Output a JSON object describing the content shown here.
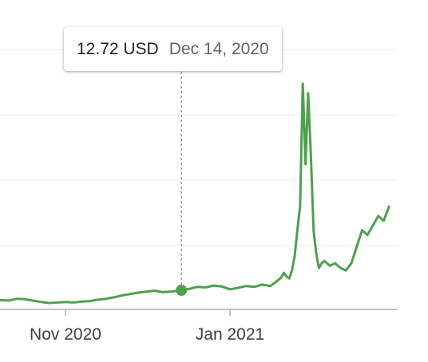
{
  "chart_data": {
    "type": "line",
    "title": "",
    "xlabel": "",
    "ylabel": "",
    "x_tick_labels": [
      "Nov 2020",
      "Jan 2021"
    ],
    "grid": true,
    "legend": "none",
    "series": [
      {
        "color": "#4f9f4f",
        "points": [
          [
            "2020-10-02",
            0.3
          ],
          [
            "2020-10-05",
            0.27
          ],
          [
            "2020-10-08",
            0.32
          ],
          [
            "2020-10-11",
            0.31
          ],
          [
            "2020-10-14",
            0.35
          ],
          [
            "2020-10-17",
            0.34
          ],
          [
            "2020-10-20",
            0.31
          ],
          [
            "2020-10-23",
            0.28
          ],
          [
            "2020-10-26",
            0.26
          ],
          [
            "2020-10-29",
            0.27
          ],
          [
            "2020-11-01",
            0.28
          ],
          [
            "2020-11-04",
            0.27
          ],
          [
            "2020-11-07",
            0.29
          ],
          [
            "2020-11-10",
            0.3
          ],
          [
            "2020-11-13",
            0.33
          ],
          [
            "2020-11-16",
            0.35
          ],
          [
            "2020-11-19",
            0.38
          ],
          [
            "2020-11-22",
            0.42
          ],
          [
            "2020-11-25",
            0.45
          ],
          [
            "2020-11-28",
            0.48
          ],
          [
            "2020-12-01",
            0.5
          ],
          [
            "2020-12-04",
            0.52
          ],
          [
            "2020-12-07",
            0.49
          ],
          [
            "2020-12-10",
            0.5
          ],
          [
            "2020-12-14",
            12.72
          ],
          [
            "2020-12-17",
            0.56
          ],
          [
            "2020-12-20",
            0.6
          ],
          [
            "2020-12-23",
            0.59
          ],
          [
            "2020-12-26",
            0.63
          ],
          [
            "2020-12-29",
            0.61
          ],
          [
            "2021-01-01",
            0.55
          ],
          [
            "2021-01-04",
            0.58
          ],
          [
            "2021-01-07",
            0.62
          ],
          [
            "2021-01-10",
            0.6
          ],
          [
            "2021-01-13",
            0.65
          ],
          [
            "2021-01-16",
            0.62
          ],
          [
            "2021-01-19",
            0.75
          ],
          [
            "2021-01-20",
            0.8
          ],
          [
            "2021-01-21",
            0.9
          ],
          [
            "2021-01-22",
            0.82
          ],
          [
            "2021-01-23",
            0.78
          ],
          [
            "2021-01-24",
            0.95
          ],
          [
            "2021-01-25",
            1.25
          ],
          [
            "2021-01-26",
            1.8
          ],
          [
            "2021-01-27",
            2.3
          ],
          [
            "2021-01-28",
            4.9
          ],
          [
            "2021-01-29",
            3.2
          ],
          [
            "2021-01-30",
            4.7
          ],
          [
            "2021-01-31",
            3.4
          ],
          [
            "2021-02-01",
            1.8
          ],
          [
            "2021-02-02",
            1.3
          ],
          [
            "2021-02-03",
            1.0
          ],
          [
            "2021-02-04",
            1.1
          ],
          [
            "2021-02-05",
            1.15
          ],
          [
            "2021-02-07",
            1.05
          ],
          [
            "2021-02-09",
            1.1
          ],
          [
            "2021-02-11",
            1.0
          ],
          [
            "2021-02-13",
            0.95
          ],
          [
            "2021-02-15",
            1.1
          ],
          [
            "2021-02-17",
            1.45
          ],
          [
            "2021-02-19",
            1.8
          ],
          [
            "2021-02-21",
            1.7
          ],
          [
            "2021-02-23",
            1.9
          ],
          [
            "2021-02-25",
            2.1
          ],
          [
            "2021-02-27",
            2.0
          ],
          [
            "2021-03-01",
            2.3
          ]
        ]
      }
    ],
    "tooltip": {
      "value": "12.72 USD",
      "date": "Dec 14, 2020"
    }
  }
}
